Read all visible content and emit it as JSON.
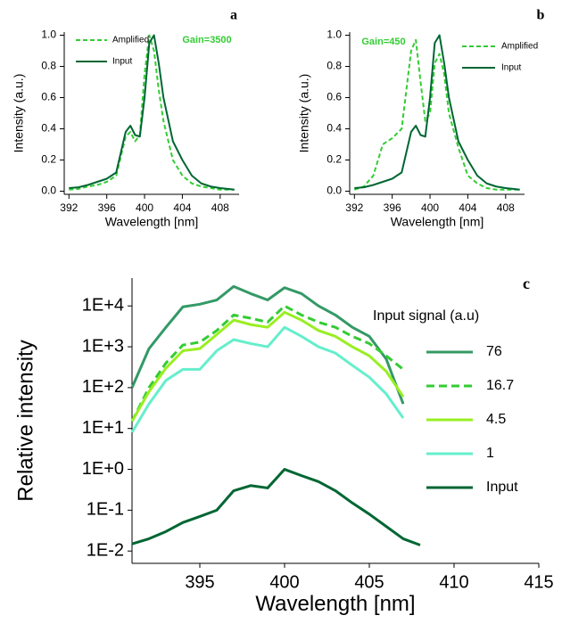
{
  "chart_data": [
    {
      "type": "line",
      "panel_label": "a",
      "annotation": "Gain=3500",
      "xlabel": "Wavelength [nm]",
      "ylabel": "Intensity (a.u.)",
      "x": [
        392,
        393,
        394,
        395,
        396,
        397,
        398,
        398.5,
        399,
        399.5,
        400,
        400.5,
        401,
        401.5,
        402,
        403,
        404,
        405,
        406,
        407,
        408,
        409.5
      ],
      "series": [
        {
          "name": "Amplified",
          "color": "#33cc33",
          "dash": true,
          "values": [
            0.01,
            0.015,
            0.03,
            0.04,
            0.06,
            0.1,
            0.35,
            0.38,
            0.32,
            0.36,
            0.75,
            1.0,
            0.9,
            0.65,
            0.45,
            0.2,
            0.1,
            0.05,
            0.03,
            0.02,
            0.01,
            0.01
          ]
        },
        {
          "name": "Input",
          "color": "#006633",
          "dash": false,
          "values": [
            0.02,
            0.025,
            0.04,
            0.06,
            0.08,
            0.12,
            0.38,
            0.42,
            0.36,
            0.35,
            0.6,
            0.95,
            1.0,
            0.82,
            0.6,
            0.32,
            0.2,
            0.1,
            0.05,
            0.03,
            0.02,
            0.01
          ]
        }
      ],
      "xlim": [
        391.5,
        410
      ],
      "xticks": [
        392,
        396,
        400,
        404,
        408
      ],
      "ylim": [
        -0.02,
        1.02
      ],
      "yticks": [
        {
          "value": 0,
          "label": "0.0"
        },
        0.2,
        0.4,
        0.6,
        0.8,
        {
          "value": 1,
          "label": "1.0"
        }
      ],
      "log_y": false,
      "grid": false,
      "legend": "upper left"
    },
    {
      "type": "line",
      "panel_label": "b",
      "annotation": "Gain=450",
      "xlabel": "Wavelength [nm]",
      "ylabel": "Intensity (a.u.)",
      "x": [
        392,
        393,
        394,
        395,
        396,
        397,
        398,
        398.5,
        399,
        399.5,
        400,
        400.5,
        401,
        401.5,
        402,
        403,
        404,
        405,
        406,
        407,
        408,
        409.5
      ],
      "series": [
        {
          "name": "Amplified",
          "color": "#33cc33",
          "dash": true,
          "values": [
            0.01,
            0.03,
            0.1,
            0.3,
            0.34,
            0.4,
            0.9,
            0.97,
            0.7,
            0.45,
            0.5,
            0.82,
            0.88,
            0.75,
            0.5,
            0.28,
            0.1,
            0.05,
            0.02,
            0.01,
            0.01,
            0.01
          ]
        },
        {
          "name": "Input",
          "color": "#006633",
          "dash": false,
          "values": [
            0.02,
            0.025,
            0.04,
            0.06,
            0.08,
            0.12,
            0.38,
            0.42,
            0.36,
            0.35,
            0.6,
            0.95,
            1.0,
            0.82,
            0.6,
            0.32,
            0.2,
            0.1,
            0.05,
            0.03,
            0.02,
            0.01
          ]
        }
      ],
      "xlim": [
        391.5,
        410
      ],
      "xticks": [
        392,
        396,
        400,
        404,
        408
      ],
      "ylim": [
        -0.02,
        1.02
      ],
      "yticks": [
        {
          "value": 0,
          "label": "0.0"
        },
        0.2,
        0.4,
        0.6,
        0.8,
        {
          "value": 1,
          "label": "1.0"
        }
      ],
      "log_y": false,
      "grid": false,
      "legend": "upper right"
    },
    {
      "type": "line",
      "panel_label": "c",
      "legend_title": "Input signal (a.u)",
      "xlabel": "Wavelength [nm]",
      "ylabel": "Relative intensity",
      "x": [
        391,
        392,
        393,
        394,
        395,
        396,
        397,
        398,
        399,
        400,
        401,
        402,
        403,
        404,
        405,
        406,
        407,
        408
      ],
      "series": [
        {
          "name": "76",
          "color": "#339966",
          "dash": false,
          "values": [
            100,
            900,
            3000,
            9500,
            11000,
            14000,
            30000,
            20000,
            14000,
            28000,
            20000,
            10000,
            6000,
            3000,
            1800,
            500,
            40,
            null
          ]
        },
        {
          "name": "16.7",
          "color": "#33cc33",
          "dash": true,
          "values": [
            15,
            100,
            400,
            1100,
            1300,
            2500,
            6000,
            5000,
            4000,
            10000,
            6000,
            4000,
            3000,
            1800,
            1200,
            600,
            280,
            null
          ]
        },
        {
          "name": "4.5",
          "color": "#99ee22",
          "dash": false,
          "values": [
            15,
            80,
            300,
            800,
            900,
            2000,
            4500,
            3500,
            3000,
            7000,
            4500,
            2500,
            1800,
            1000,
            600,
            250,
            60,
            null
          ]
        },
        {
          "name": "1",
          "color": "#66eecc",
          "dash": false,
          "values": [
            8,
            40,
            150,
            280,
            280,
            800,
            1500,
            1200,
            1000,
            3000,
            1800,
            1000,
            700,
            350,
            180,
            70,
            18,
            null
          ]
        },
        {
          "name": "Input",
          "color": "#006633",
          "dash": false,
          "values": [
            0.015,
            0.02,
            0.03,
            0.05,
            0.07,
            0.1,
            0.3,
            0.4,
            0.35,
            1.0,
            0.7,
            0.5,
            0.3,
            0.15,
            0.08,
            0.04,
            0.02,
            0.014
          ]
        }
      ],
      "xlim": [
        391,
        415
      ],
      "xticks": [
        395,
        400,
        405,
        410,
        415
      ],
      "ylim": [
        0.005,
        48000
      ],
      "yticks": [
        {
          "value": 0.01,
          "label": "1E-2"
        },
        {
          "value": 0.1,
          "label": "1E-1"
        },
        {
          "value": 1,
          "label": "1E+0"
        },
        {
          "value": 10,
          "label": "1E+1"
        },
        {
          "value": 100,
          "label": "1E+2"
        },
        {
          "value": 1000,
          "label": "1E+3"
        },
        {
          "value": 10000,
          "label": "1E+4"
        }
      ],
      "log_y": true,
      "grid": false,
      "legend": "right"
    }
  ]
}
